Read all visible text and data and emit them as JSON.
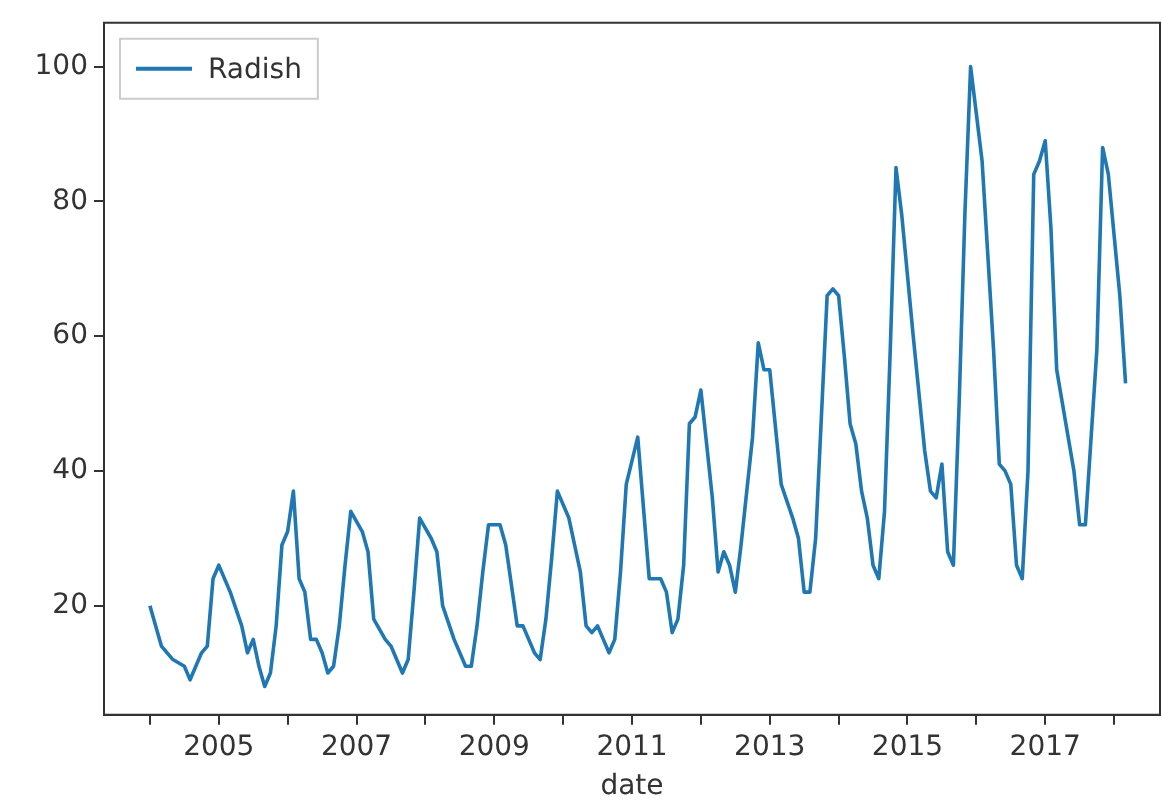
{
  "chart_data": {
    "type": "line",
    "xlabel": "date",
    "legend": "top left",
    "grid": false,
    "marker": "none",
    "line_style": "solid",
    "xlim": [
      "2003-05",
      "2018-09"
    ],
    "ylim": [
      3.8,
      106.5
    ],
    "xticks": [
      {
        "value": "2004",
        "label": null
      },
      "2005",
      {
        "value": "2006",
        "label": null
      },
      "2007",
      {
        "value": "2008",
        "label": null
      },
      "2009",
      {
        "value": "2010",
        "label": null
      },
      "2011",
      {
        "value": "2012",
        "label": null
      },
      "2013",
      {
        "value": "2014",
        "label": null
      },
      "2015",
      {
        "value": "2016",
        "label": null
      },
      "2017",
      {
        "value": "2018",
        "label": null
      }
    ],
    "yticks": [
      20,
      40,
      60,
      80,
      100
    ],
    "x": [
      "2004-01",
      "2004-03",
      "2004-05",
      "2004-07",
      "2004-08",
      "2004-10",
      "2004-11",
      "2004-12",
      "2005-01",
      "2005-03",
      "2005-05",
      "2005-06",
      "2005-07",
      "2005-08",
      "2005-09",
      "2005-10",
      "2005-11",
      "2005-12",
      "2006-01",
      "2006-02",
      "2006-03",
      "2006-04",
      "2006-05",
      "2006-06",
      "2006-07",
      "2006-08",
      "2006-09",
      "2006-10",
      "2006-11",
      "2006-12",
      "2007-02",
      "2007-03",
      "2007-04",
      "2007-06",
      "2007-07",
      "2007-09",
      "2007-10",
      "2007-11",
      "2007-12",
      "2008-02",
      "2008-03",
      "2008-04",
      "2008-06",
      "2008-08",
      "2008-09",
      "2008-10",
      "2008-11",
      "2008-12",
      "2009-02",
      "2009-03",
      "2009-05",
      "2009-06",
      "2009-08",
      "2009-09",
      "2009-10",
      "2009-11",
      "2009-12",
      "2010-02",
      "2010-04",
      "2010-05",
      "2010-06",
      "2010-07",
      "2010-08",
      "2010-09",
      "2010-10",
      "2010-11",
      "2010-12",
      "2011-02",
      "2011-04",
      "2011-06",
      "2011-07",
      "2011-08",
      "2011-09",
      "2011-10",
      "2011-11",
      "2011-12",
      "2012-01",
      "2012-03",
      "2012-04",
      "2012-05",
      "2012-06",
      "2012-07",
      "2012-08",
      "2012-10",
      "2012-11",
      "2012-12",
      "2013-01",
      "2013-03",
      "2013-05",
      "2013-06",
      "2013-07",
      "2013-08",
      "2013-09",
      "2013-10",
      "2013-11",
      "2013-12",
      "2014-01",
      "2014-02",
      "2014-03",
      "2014-04",
      "2014-05",
      "2014-06",
      "2014-07",
      "2014-08",
      "2014-09",
      "2014-10",
      "2014-11",
      "2014-12",
      "2015-02",
      "2015-04",
      "2015-05",
      "2015-06",
      "2015-07",
      "2015-08",
      "2015-09",
      "2015-10",
      "2015-11",
      "2015-12",
      "2016-01",
      "2016-02",
      "2016-04",
      "2016-05",
      "2016-06",
      "2016-07",
      "2016-08",
      "2016-09",
      "2016-10",
      "2016-11",
      "2016-12",
      "2017-01",
      "2017-02",
      "2017-03",
      "2017-05",
      "2017-06",
      "2017-07",
      "2017-08",
      "2017-10",
      "2017-11",
      "2017-12",
      "2018-02",
      "2018-03"
    ],
    "series": [
      {
        "name": "Radish",
        "color": "#1f77b4",
        "values": [
          20,
          14,
          12,
          11,
          9,
          13,
          14,
          24,
          26,
          22,
          17,
          13,
          15,
          11,
          8,
          10,
          17,
          29,
          31,
          37,
          24,
          22,
          15,
          15,
          13,
          10,
          11,
          17,
          26,
          34,
          31,
          28,
          18,
          15,
          14,
          10,
          12,
          22,
          33,
          30,
          28,
          20,
          15,
          11,
          11,
          17,
          25,
          32,
          32,
          29,
          17,
          17,
          13,
          12,
          18,
          27,
          37,
          33,
          25,
          17,
          16,
          17,
          15,
          13,
          15,
          25,
          38,
          45,
          24,
          24,
          22,
          16,
          18,
          26,
          47,
          48,
          52,
          36,
          25,
          28,
          26,
          22,
          29,
          45,
          59,
          55,
          55,
          38,
          33,
          30,
          22,
          22,
          30,
          48,
          66,
          67,
          66,
          57,
          47,
          44,
          37,
          33,
          26,
          24,
          34,
          58,
          85,
          78,
          60,
          43,
          37,
          36,
          41,
          28,
          26,
          50,
          78,
          100,
          93,
          86,
          58,
          41,
          40,
          38,
          26,
          24,
          40,
          84,
          86,
          89,
          76,
          55,
          45,
          40,
          32,
          32,
          58,
          88,
          84,
          66,
          53
        ]
      }
    ]
  }
}
